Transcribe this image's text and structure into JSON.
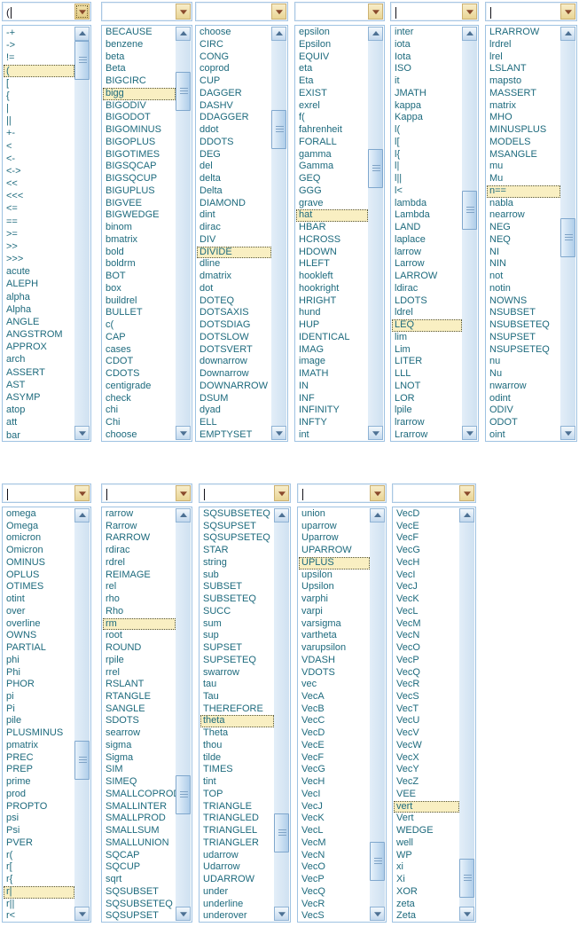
{
  "colors": {
    "item_text": "#1d6a7d",
    "highlight_bg": "#f9efc2",
    "field_border": "#a9c7e3",
    "list_border": "#9ec2e2",
    "dropdown_button_bg": "#eedda2",
    "dropdown_arrow": "#8a4a2c",
    "scrollbar_blue": "#aecde9"
  },
  "pickers": [
    {
      "id": "picker-1",
      "combo": {
        "value": "(",
        "cursor": true,
        "dropdown_focused": true
      },
      "selected_item": "(",
      "scroll_percent": 0,
      "items": [
        "-+",
        "->",
        "!=",
        "(",
        "[",
        "{",
        "|",
        "||",
        "+-",
        "<",
        "<-",
        "<->",
        "<<",
        "<<<",
        "<=",
        "==",
        ">=",
        ">>",
        ">>>",
        "acute",
        "ALEPH",
        "alpha",
        "Alpha",
        "ANGLE",
        "ANGSTROM",
        "APPROX",
        "arch",
        "ASSERT",
        "AST",
        "ASYMP",
        "atop",
        "att",
        "bar"
      ]
    },
    {
      "id": "picker-2",
      "combo": {
        "value": "",
        "cursor": false,
        "dropdown_focused": false
      },
      "selected_item": "bigg",
      "scroll_percent": 9,
      "items": [
        "BECAUSE",
        "benzene",
        "beta",
        "Beta",
        "BIGCIRC",
        "bigg",
        "BIGODIV",
        "BIGODOT",
        "BIGOMINUS",
        "BIGOPLUS",
        "BIGOTIMES",
        "BIGSQCAP",
        "BIGSQCUP",
        "BIGUPLUS",
        "BIGVEE",
        "BIGWEDGE",
        "binom",
        "bmatrix",
        "bold",
        "boldrm",
        "BOT",
        "box",
        "buildrel",
        "BULLET",
        "c(",
        "CAP",
        "cases",
        "CDOT",
        "CDOTS",
        "centigrade",
        "check",
        "chi",
        "Chi",
        "choose"
      ]
    },
    {
      "id": "picker-3",
      "combo": {
        "value": "",
        "cursor": false,
        "dropdown_focused": false
      },
      "selected_item": "DIVIDE",
      "scroll_percent": 20,
      "items": [
        "choose",
        "CIRC",
        "CONG",
        "coprod",
        "CUP",
        "DAGGER",
        "DASHV",
        "DDAGGER",
        "ddot",
        "DDOTS",
        "DEG",
        "del",
        "delta",
        "Delta",
        "DIAMOND",
        "dint",
        "dirac",
        "DIV",
        "DIVIDE",
        "dline",
        "dmatrix",
        "dot",
        "DOTEQ",
        "DOTSAXIS",
        "DOTSDIAG",
        "DOTSLOW",
        "DOTSVERT",
        "downarrow",
        "Downarrow",
        "DOWNARROW",
        "DSUM",
        "dyad",
        "ELL",
        "EMPTYSET"
      ]
    },
    {
      "id": "picker-4",
      "combo": {
        "value": "",
        "cursor": false,
        "dropdown_focused": false
      },
      "selected_item": "hat",
      "scroll_percent": 31,
      "items": [
        "epsilon",
        "Epsilon",
        "EQUIV",
        "eta",
        "Eta",
        "EXIST",
        "exrel",
        "f(",
        "fahrenheit",
        "FORALL",
        "gamma",
        "Gamma",
        "GEQ",
        "GGG",
        "grave",
        "hat",
        "HBAR",
        "HCROSS",
        "HDOWN",
        "HLEFT",
        "hookleft",
        "hookright",
        "HRIGHT",
        "hund",
        "HUP",
        "IDENTICAL",
        "IMAG",
        "image",
        "IMATH",
        "IN",
        "INF",
        "INFINITY",
        "INFTY",
        "int"
      ]
    },
    {
      "id": "picker-5",
      "combo": {
        "value": "",
        "cursor": true,
        "dropdown_focused": false
      },
      "selected_item": "LEQ",
      "scroll_percent": 43,
      "items": [
        "inter",
        "iota",
        "Iota",
        "ISO",
        "it",
        "JMATH",
        "kappa",
        "Kappa",
        "l(",
        "l[",
        "l{",
        "l|",
        "l||",
        "l<",
        "lambda",
        "Lambda",
        "LAND",
        "laplace",
        "larrow",
        "Larrow",
        "LARROW",
        "ldirac",
        "LDOTS",
        "ldrel",
        "LEQ",
        "lim",
        "Lim",
        "LITER",
        "LLL",
        "LNOT",
        "LOR",
        "lpile",
        "lrarrow",
        "Lrarrow"
      ]
    },
    {
      "id": "picker-6",
      "combo": {
        "value": "",
        "cursor": true,
        "dropdown_focused": false
      },
      "selected_item": "n==",
      "scroll_percent": 51,
      "items": [
        "LRARROW",
        "lrdrel",
        "lrel",
        "LSLANT",
        "mapsto",
        "MASSERT",
        "matrix",
        "MHO",
        "MINUSPLUS",
        "MODELS",
        "MSANGLE",
        "mu",
        "Mu",
        "n==",
        "nabla",
        "nearrow",
        "NEG",
        "NEQ",
        "NI",
        "NIN",
        "not",
        "notin",
        "NOWNS",
        "NSUBSET",
        "NSUBSETEQ",
        "NSUPSET",
        "NSUPSETEQ",
        "nu",
        "Nu",
        "nwarrow",
        "odint",
        "ODIV",
        "ODOT",
        "oint"
      ]
    },
    {
      "id": "picker-7",
      "combo": {
        "value": "",
        "cursor": true,
        "dropdown_focused": false
      },
      "selected_item": "r|",
      "scroll_percent": 63,
      "items": [
        "omega",
        "Omega",
        "omicron",
        "Omicron",
        "OMINUS",
        "OPLUS",
        "OTIMES",
        "otint",
        "over",
        "overline",
        "OWNS",
        "PARTIAL",
        "phi",
        "Phi",
        "PHOR",
        "pi",
        "Pi",
        "pile",
        "PLUSMINUS",
        "pmatrix",
        "PREC",
        "PREP",
        "prime",
        "prod",
        "PROPTO",
        "psi",
        "Psi",
        "PVER",
        "r(",
        "r[",
        "r{",
        "r|",
        "r||",
        "r<"
      ]
    },
    {
      "id": "picker-8",
      "combo": {
        "value": "",
        "cursor": true,
        "dropdown_focused": false
      },
      "selected_item": "rm",
      "scroll_percent": 73,
      "items": [
        "rarrow",
        "Rarrow",
        "RARROW",
        "rdirac",
        "rdrel",
        "REIMAGE",
        "rel",
        "rho",
        "Rho",
        "rm",
        "root",
        "ROUND",
        "rpile",
        "rrel",
        "RSLANT",
        "RTANGLE",
        "SANGLE",
        "SDOTS",
        "searrow",
        "sigma",
        "Sigma",
        "SIM",
        "SIMEQ",
        "SMALLCOPROD",
        "SMALLINTER",
        "SMALLPROD",
        "SMALLSUM",
        "SMALLUNION",
        "SQCAP",
        "SQCUP",
        "sqrt",
        "SQSUBSET",
        "SQSUBSETEQ",
        "SQSUPSET"
      ]
    },
    {
      "id": "picker-9",
      "combo": {
        "value": "",
        "cursor": true,
        "dropdown_focused": false
      },
      "selected_item": "theta",
      "scroll_percent": 84,
      "items": [
        "SQSUBSETEQ",
        "SQSUPSET",
        "SQSUPSETEQ",
        "STAR",
        "string",
        "sub",
        "SUBSET",
        "SUBSETEQ",
        "SUCC",
        "sum",
        "sup",
        "SUPSET",
        "SUPSETEQ",
        "swarrow",
        "tau",
        "Tau",
        "THEREFORE",
        "theta",
        "Theta",
        "thou",
        "tilde",
        "TIMES",
        "tint",
        "TOP",
        "TRIANGLE",
        "TRIANGLED",
        "TRIANGLEL",
        "TRIANGLER",
        "udarrow",
        "Udarrow",
        "UDARROW",
        "under",
        "underline",
        "underover"
      ]
    },
    {
      "id": "picker-10",
      "combo": {
        "value": "",
        "cursor": true,
        "dropdown_focused": false
      },
      "selected_item": "UPLUS",
      "scroll_percent": 92,
      "items": [
        "union",
        "uparrow",
        "Uparrow",
        "UPARROW",
        "UPLUS",
        "upsilon",
        "Upsilon",
        "varphi",
        "varpi",
        "varsigma",
        "vartheta",
        "varupsilon",
        "VDASH",
        "VDOTS",
        "vec",
        "VecA",
        "VecB",
        "VecC",
        "VecD",
        "VecE",
        "VecF",
        "VecG",
        "VecH",
        "VecI",
        "VecJ",
        "VecK",
        "VecL",
        "VecM",
        "VecN",
        "VecO",
        "VecP",
        "VecQ",
        "VecR",
        "VecS"
      ]
    },
    {
      "id": "picker-11",
      "combo": {
        "value": "",
        "cursor": false,
        "dropdown_focused": false
      },
      "selected_item": "vert",
      "scroll_percent": 97,
      "items": [
        "VecD",
        "VecE",
        "VecF",
        "VecG",
        "VecH",
        "VecI",
        "VecJ",
        "VecK",
        "VecL",
        "VecM",
        "VecN",
        "VecO",
        "VecP",
        "VecQ",
        "VecR",
        "VecS",
        "VecT",
        "VecU",
        "VecV",
        "VecW",
        "VecX",
        "VecY",
        "VecZ",
        "VEE",
        "vert",
        "Vert",
        "WEDGE",
        "well",
        "WP",
        "xi",
        "Xi",
        "XOR",
        "zeta",
        "Zeta"
      ]
    }
  ]
}
